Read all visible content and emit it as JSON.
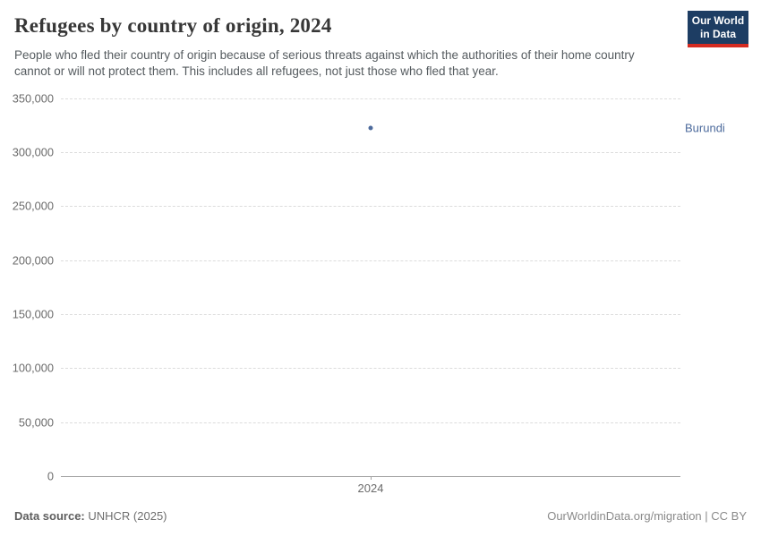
{
  "header": {
    "title": "Refugees by country of origin, 2024",
    "subtitle": "People who fled their country of origin because of serious threats against which the authorities of their home country cannot or will not protect them. This includes all refugees, not just those who fled that year.",
    "logo": {
      "line1": "Our World",
      "line2": "in Data",
      "bg_color": "#1d3d63",
      "accent_color": "#d42b21"
    }
  },
  "chart_data": {
    "type": "scatter",
    "title": "Refugees by country of origin, 2024",
    "x": [
      2024
    ],
    "xlim": [
      2023.5,
      2024.5
    ],
    "xticks": [
      2024
    ],
    "ylim": [
      0,
      350000
    ],
    "yticks": [
      0,
      50000,
      100000,
      150000,
      200000,
      250000,
      300000,
      350000
    ],
    "ytick_labels": [
      "0",
      "50,000",
      "100,000",
      "150,000",
      "200,000",
      "250,000",
      "300,000",
      "350,000"
    ],
    "grid": "horizontal-dashed",
    "legend": "entity-label-right",
    "series": [
      {
        "name": "Burundi",
        "values": [
          322000
        ],
        "color": "#4c6a9c"
      }
    ]
  },
  "footer": {
    "source_label": "Data source:",
    "source_value": "UNHCR (2025)",
    "credit": "OurWorldinData.org/migration | CC BY"
  },
  "colors": {
    "title": "#373737",
    "subtitle": "#555b5f",
    "gridline": "#dcdcdc",
    "axis": "#a1a1a1",
    "tick_label": "#6b6b6b",
    "series_blue": "#4c6a9c"
  }
}
